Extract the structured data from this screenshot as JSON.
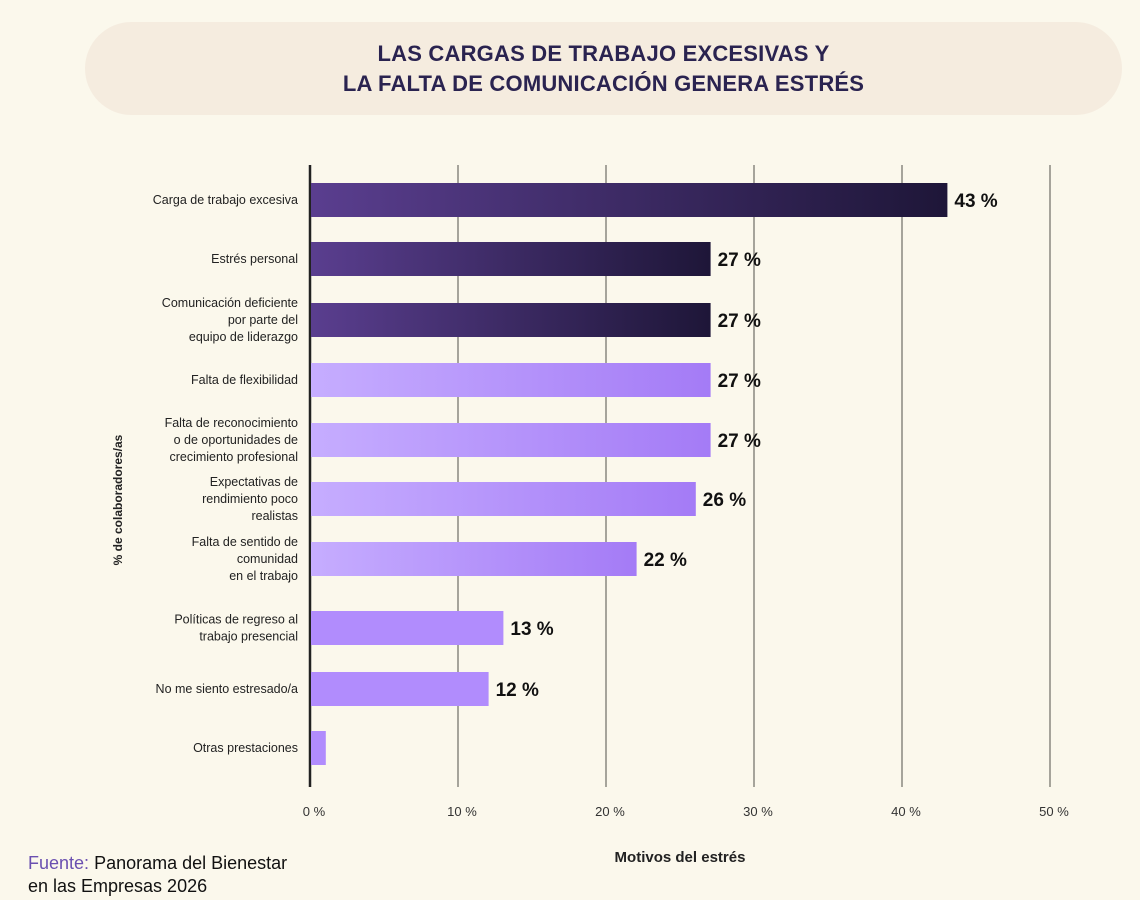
{
  "title_lines": [
    "LAS CARGAS DE TRABAJO EXCESIVAS Y",
    "LA FALTA DE COMUNICACIÓN GENERA ESTRÉS"
  ],
  "source": {
    "label": "Fuente:",
    "text_lines": [
      "Panorama del Bienestar",
      "en las Empresas 2026"
    ]
  },
  "colors": {
    "background": "#fbf8ec",
    "title": "#2a2350",
    "dark_bar_start": "#5a3e8f",
    "dark_bar_end": "#1e1638",
    "light_bar_start": "#c6adff",
    "light_bar_end": "#a47bf6",
    "source_label": "#6a4fb0"
  },
  "chart_data": {
    "type": "bar",
    "orientation": "horizontal",
    "title": "LAS CARGAS DE TRABAJO EXCESIVAS Y LA FALTA DE COMUNICACIÓN GENERA ESTRÉS",
    "xlabel": "Motivos del estrés",
    "ylabel": "% de colaboradores/as",
    "xlim": [
      0,
      50
    ],
    "xticks": [
      "0 %",
      "10 %",
      "20 %",
      "30 %",
      "40 %",
      "50 %"
    ],
    "grid": true,
    "categories": [
      [
        "Carga de trabajo excesiva"
      ],
      [
        "Estrés personal"
      ],
      [
        "Comunicación deficiente",
        "por parte del",
        "equipo de liderazgo"
      ],
      [
        "Falta de flexibilidad"
      ],
      [
        "Falta de reconocimiento",
        "o de oportunidades de",
        "crecimiento profesional"
      ],
      [
        "Expectativas de",
        "rendimiento poco",
        "realistas"
      ],
      [
        "Falta de sentido de",
        "comunidad",
        "en el trabajo"
      ],
      [
        "Políticas de regreso al",
        "trabajo presencial"
      ],
      [
        "No me siento estresado/a"
      ],
      [
        "Otras prestaciones"
      ]
    ],
    "values": [
      43,
      27,
      27,
      27,
      27,
      26,
      22,
      13,
      12,
      1
    ],
    "labels": [
      "43 %",
      "27 %",
      "27 %",
      "27 %",
      "27 %",
      "26 %",
      "22 %",
      "13 %",
      "12 %",
      ""
    ],
    "highlight": [
      true,
      true,
      true,
      false,
      false,
      false,
      false,
      false,
      false,
      false
    ]
  }
}
